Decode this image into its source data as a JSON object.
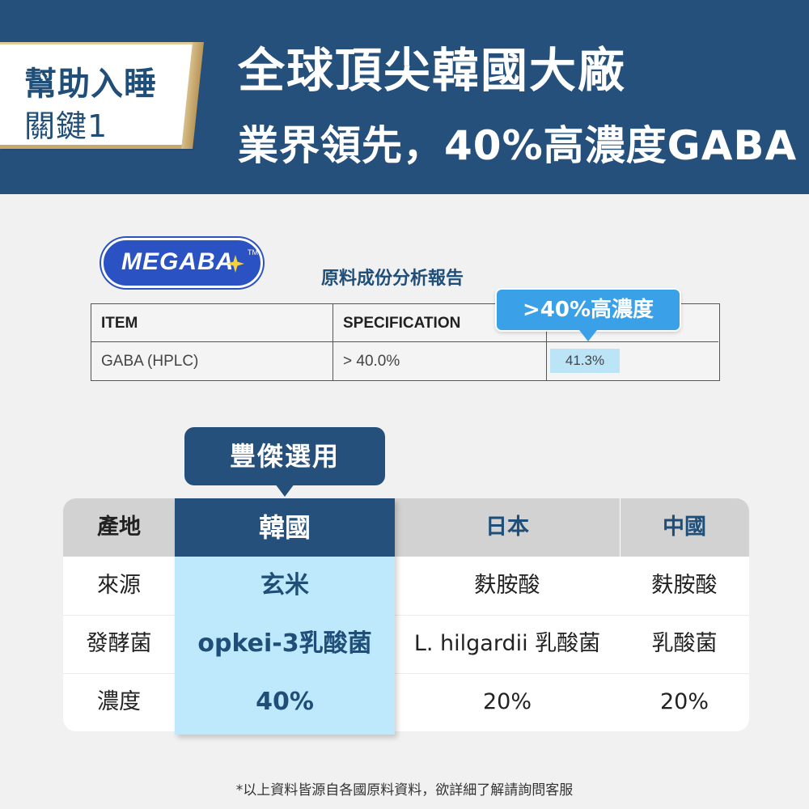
{
  "header": {
    "tag_line1": "幫助入睡",
    "tag_line2": "關鍵1",
    "headline1": "全球頂尖韓國大廠",
    "headline2": "業界領先，40%高濃度GABA"
  },
  "colors": {
    "navy": "#24507b",
    "light_blue": "#bee8fb",
    "bubble_blue": "#3aa0e8",
    "logo_blue": "#2a52c2",
    "gold": "#c9a86a"
  },
  "report": {
    "logo_text": "MEGABA",
    "logo_tm": "TM",
    "title": "原料成份分析報告",
    "bubble": ">40%高濃度",
    "headers": [
      "ITEM",
      "SPECIFICATION",
      ""
    ],
    "row": [
      "GABA (HPLC)",
      "> 40.0%",
      "41.3%"
    ]
  },
  "choice_label": "豐傑選用",
  "comparison": {
    "headers": [
      "產地",
      "韓國",
      "日本",
      "中國"
    ],
    "rows": [
      [
        "來源",
        "玄米",
        "麩胺酸",
        "麩胺酸"
      ],
      [
        "發酵菌",
        "opkei-3乳酸菌",
        "L. hilgardii 乳酸菌",
        "乳酸菌"
      ],
      [
        "濃度",
        "40%",
        "20%",
        "20%"
      ]
    ]
  },
  "footnote": "*以上資料皆源自各國原料資料，欲詳細了解請詢問客服"
}
